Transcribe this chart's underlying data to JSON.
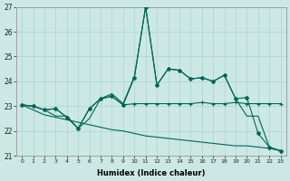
{
  "xlabel": "Humidex (Indice chaleur)",
  "bg_color": "#cce8e4",
  "grid_color": "#aad4cc",
  "line_color": "#006655",
  "xlim": [
    -0.5,
    23.5
  ],
  "ylim": [
    21,
    27
  ],
  "yticks": [
    21,
    22,
    23,
    24,
    25,
    26,
    27
  ],
  "xticks": [
    0,
    1,
    2,
    3,
    4,
    5,
    6,
    7,
    8,
    9,
    10,
    11,
    12,
    13,
    14,
    15,
    16,
    17,
    18,
    19,
    20,
    21,
    22,
    23
  ],
  "line_spike_x": [
    0,
    1,
    2,
    3,
    4,
    5,
    6,
    7,
    8,
    9,
    10,
    11,
    12,
    13,
    14,
    15,
    16,
    17,
    18,
    19,
    20,
    21,
    22,
    23
  ],
  "line_spike_y": [
    23.05,
    23.0,
    22.85,
    22.9,
    22.55,
    22.1,
    22.9,
    23.3,
    23.4,
    23.05,
    24.15,
    27.0,
    23.85,
    24.5,
    24.45,
    24.1,
    24.15,
    24.0,
    24.25,
    23.3,
    23.35,
    21.9,
    21.35,
    21.2
  ],
  "line_flat_x": [
    0,
    1,
    2,
    3,
    4,
    5,
    6,
    7,
    8,
    9,
    10,
    11,
    12,
    13,
    14,
    15,
    16,
    17,
    18,
    19,
    20,
    21,
    22,
    23
  ],
  "line_flat_y": [
    23.05,
    23.0,
    22.85,
    22.9,
    22.55,
    22.1,
    22.9,
    23.3,
    23.4,
    23.05,
    23.1,
    23.1,
    23.1,
    23.1,
    23.1,
    23.1,
    23.15,
    23.1,
    23.1,
    23.15,
    23.1,
    23.1,
    23.1,
    23.1
  ],
  "line_rise_x": [
    0,
    1,
    2,
    3,
    4,
    5,
    6,
    7,
    8,
    9,
    10,
    11,
    12,
    13,
    14,
    15,
    16,
    17,
    18,
    19,
    20,
    21,
    22,
    23
  ],
  "line_rise_y": [
    23.05,
    23.0,
    22.85,
    22.6,
    22.6,
    22.1,
    22.5,
    23.3,
    23.5,
    23.1,
    24.2,
    27.0,
    23.85,
    24.5,
    24.45,
    24.1,
    24.15,
    24.0,
    24.25,
    23.3,
    22.6,
    22.6,
    21.35,
    21.2
  ],
  "line_diag_x": [
    0,
    1,
    2,
    3,
    4,
    5,
    6,
    7,
    8,
    9,
    10,
    11,
    12,
    13,
    14,
    15,
    16,
    17,
    18,
    19,
    20,
    21,
    22,
    23
  ],
  "line_diag_y": [
    23.05,
    22.85,
    22.65,
    22.55,
    22.45,
    22.35,
    22.25,
    22.15,
    22.05,
    22.0,
    21.9,
    21.8,
    21.75,
    21.7,
    21.65,
    21.6,
    21.55,
    21.5,
    21.45,
    21.4,
    21.4,
    21.35,
    21.3,
    21.2
  ]
}
